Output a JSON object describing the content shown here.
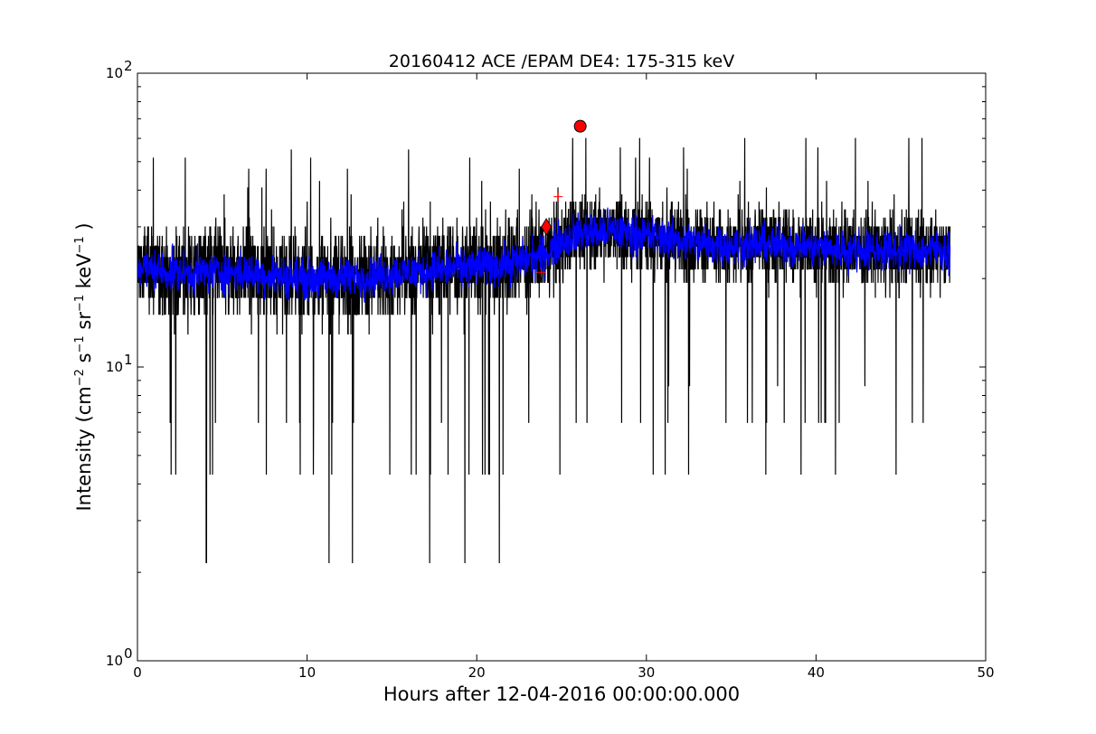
{
  "chart_data": {
    "type": "line",
    "title": "20160412 ACE /EPAM DE4: 175-315 keV",
    "xlabel": "Hours after 12-04-2016 00:00:00.000",
    "ylabel_parts": [
      "Intensity (cm",
      "−2",
      " s",
      "−1",
      " sr",
      "−1",
      " keV",
      "−1",
      " )"
    ],
    "xlim": [
      0,
      50
    ],
    "ylim": [
      1,
      100
    ],
    "yscale": "log",
    "grid": false,
    "x_ticks": [
      0,
      10,
      20,
      30,
      40,
      50
    ],
    "x_tick_labels": [
      "0",
      "10",
      "20",
      "30",
      "40",
      "50"
    ],
    "y_ticks": [
      1,
      10,
      100
    ],
    "y_tick_labels": [
      "10",
      "10",
      "10"
    ],
    "y_tick_exponents": [
      "0",
      "1",
      "2"
    ],
    "colors": {
      "raw": "#000000",
      "smoothed": "#0000ff",
      "marker": "#ff0000"
    },
    "series": [
      {
        "role": "raw",
        "x_range": [
          0,
          47.9
        ],
        "pre_event": {
          "x_range": [
            0,
            24
          ],
          "median": 20,
          "typical_low": 11,
          "typical_high": 35,
          "spike_min": 2.15,
          "spike_max": 55
        },
        "post_event": {
          "x_range": [
            24,
            47.9
          ],
          "median": 25,
          "typical_low": 14,
          "typical_high": 40,
          "spike_min": 4.3,
          "spike_max": 70
        }
      },
      {
        "role": "smoothed",
        "points": [
          [
            0,
            22
          ],
          [
            2,
            21
          ],
          [
            4,
            21
          ],
          [
            6,
            21
          ],
          [
            8,
            20.5
          ],
          [
            10,
            20
          ],
          [
            12,
            20
          ],
          [
            14,
            20.5
          ],
          [
            16,
            21
          ],
          [
            18,
            21.5
          ],
          [
            20,
            22
          ],
          [
            22,
            22.5
          ],
          [
            24,
            24
          ],
          [
            25,
            27
          ],
          [
            26,
            28.5
          ],
          [
            28,
            29
          ],
          [
            30,
            28
          ],
          [
            32,
            27
          ],
          [
            34,
            26
          ],
          [
            36,
            26
          ],
          [
            38,
            26
          ],
          [
            40,
            25.5
          ],
          [
            42,
            25
          ],
          [
            44,
            25
          ],
          [
            46,
            25
          ],
          [
            47.9,
            25
          ]
        ]
      }
    ],
    "markers": [
      {
        "shape": "circle",
        "x": 26.1,
        "y": 66
      },
      {
        "shape": "diamond",
        "x": 24.1,
        "y": 30
      },
      {
        "shape": "plus",
        "x": 24.8,
        "y": 38
      },
      {
        "shape": "plus",
        "x": 23.8,
        "y": 21
      }
    ]
  }
}
